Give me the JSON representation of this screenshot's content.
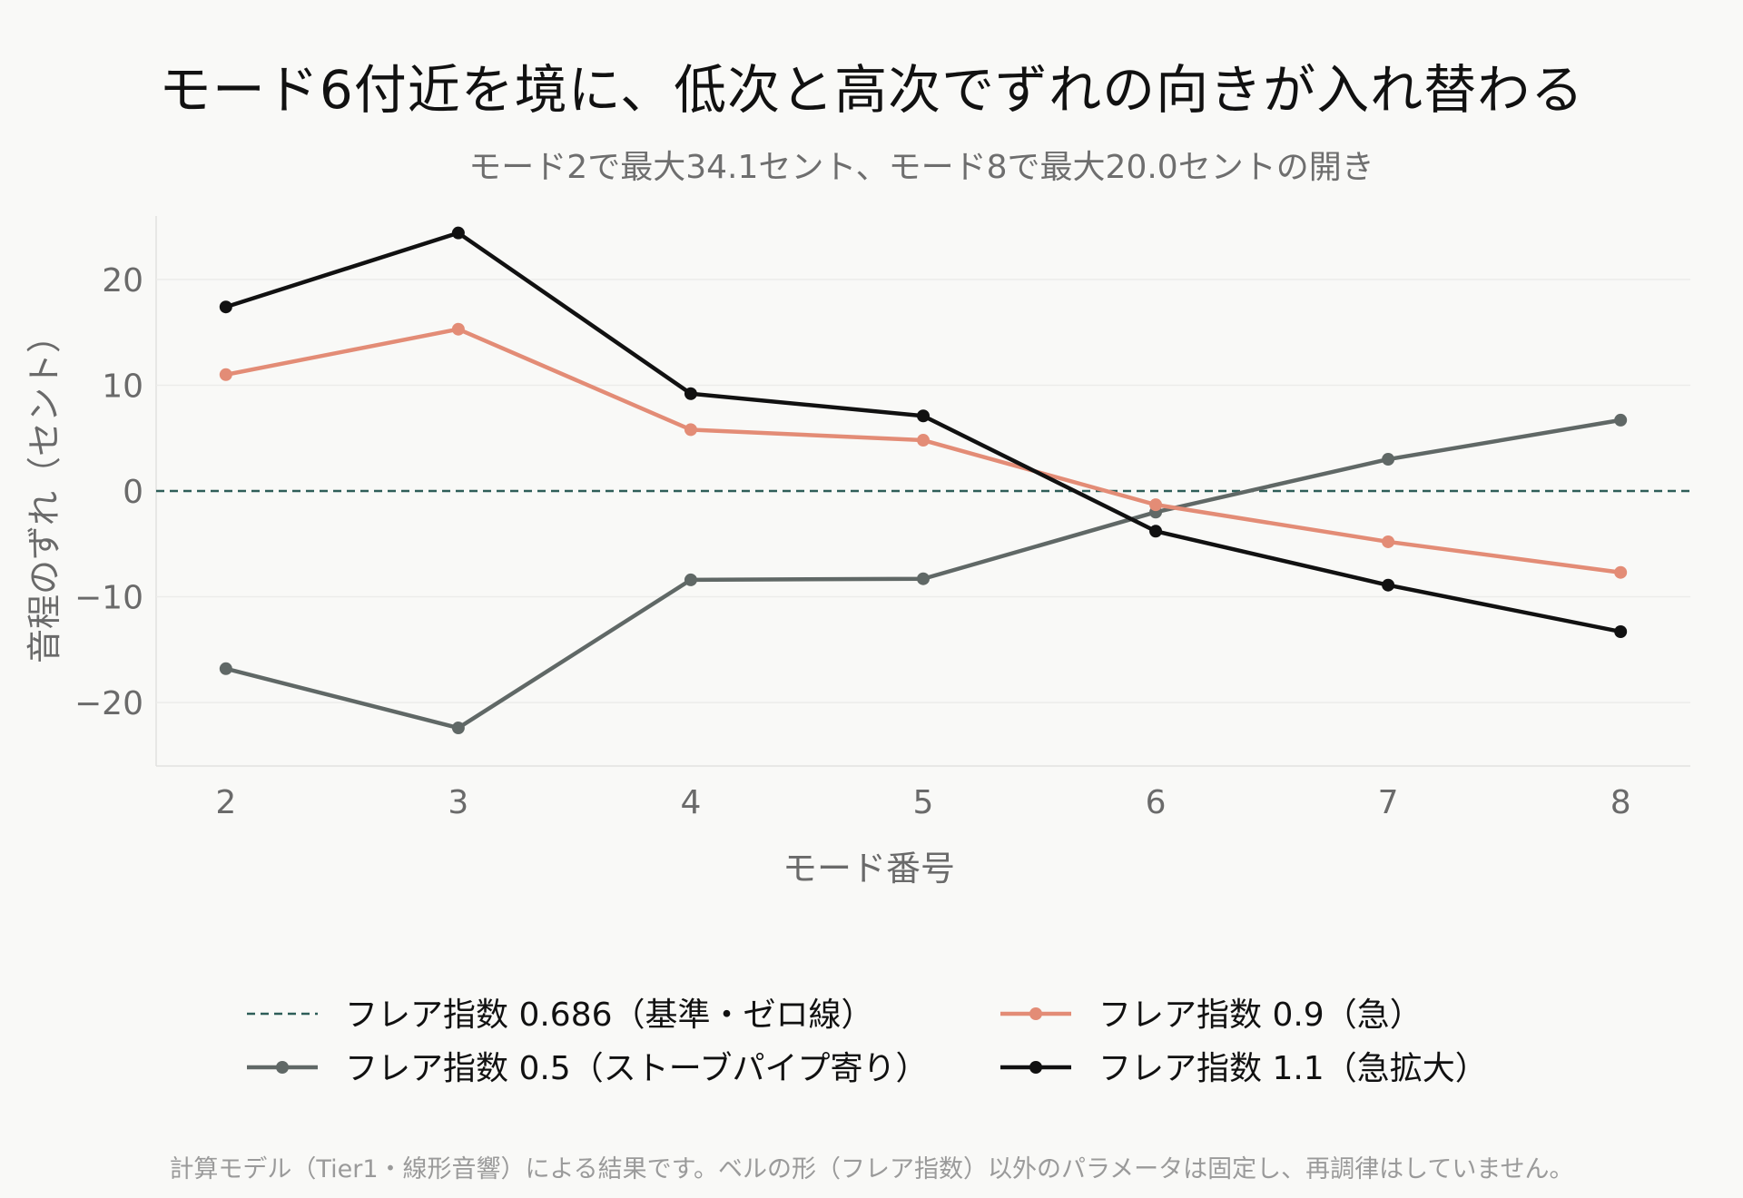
{
  "title": "モード6付近を境に、低次と高次でずれの向きが入れ替わる",
  "subtitle": "モード2で最大34.1セント、モード8で最大20.0セントの開き",
  "footnote": "計算モデル（Tier1・線形音響）による結果です。ベルの形（フレア指数）以外のパラメータは固定し、再調律はしていません。",
  "chart_data": {
    "type": "line",
    "xlabel": "モード番号",
    "ylabel": "音程のずれ（セント）",
    "x": [
      2,
      3,
      4,
      5,
      6,
      7,
      8
    ],
    "xlim": [
      1.7,
      8.3
    ],
    "ylim": [
      -26,
      26
    ],
    "yticks": [
      -20,
      -10,
      0,
      10,
      20
    ],
    "ytick_labels": [
      "−20",
      "−10",
      "0",
      "10",
      "20"
    ],
    "grid": true,
    "legend_position": "bottom",
    "reference": {
      "name": "フレア指数 0.686（基準・ゼロ線）",
      "y": 0,
      "color": "#2e5e58",
      "style": "dashed"
    },
    "series": [
      {
        "name": "フレア指数 0.5（ストーブパイプ寄り）",
        "color": "#606866",
        "values": [
          -16.8,
          -22.4,
          -8.4,
          -8.3,
          -2.0,
          3.0,
          6.7
        ]
      },
      {
        "name": "フレア指数 0.9（急）",
        "color": "#e38c76",
        "values": [
          11.0,
          15.3,
          5.8,
          4.8,
          -1.3,
          -4.8,
          -7.7
        ]
      },
      {
        "name": "フレア指数 1.1（急拡大）",
        "color": "#111111",
        "values": [
          17.4,
          24.4,
          9.2,
          7.1,
          -3.8,
          -8.9,
          -13.3
        ]
      }
    ]
  }
}
